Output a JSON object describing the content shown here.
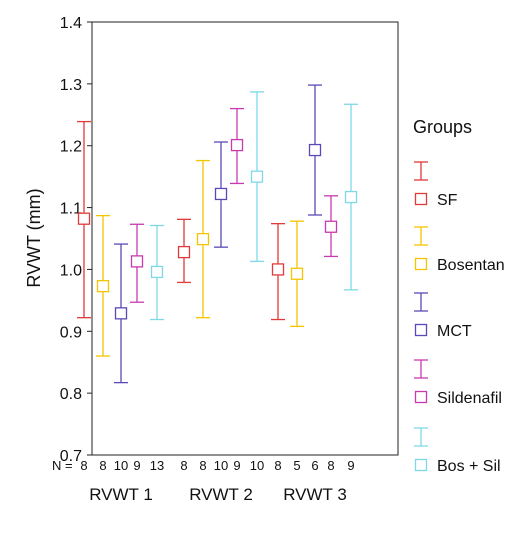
{
  "chart_data": {
    "type": "error-bar",
    "ylabel": "RVWT (mm)",
    "xlabel": "",
    "ylim": [
      0.7,
      1.4
    ],
    "yticks": [
      "0.7",
      "0.8",
      "0.9",
      "1.0",
      "1.1",
      "1.2",
      "1.3",
      "1.4"
    ],
    "n_prefix": "N =",
    "legend_title": "Groups",
    "legend_position": "right",
    "categories": [
      "RVWT 1",
      "RVWT 2",
      "RVWT 3"
    ],
    "series": [
      {
        "name": "SF",
        "color": "#e03a3a",
        "mean": [
          1.082,
          1.028,
          1.0
        ],
        "lower": [
          0.922,
          0.979,
          0.919
        ],
        "upper": [
          1.239,
          1.081,
          1.074
        ],
        "n": [
          "8",
          "8",
          "8"
        ]
      },
      {
        "name": "Bosentan",
        "color": "#f5c400",
        "mean": [
          0.973,
          1.049,
          0.993
        ],
        "lower": [
          0.86,
          0.922,
          0.908
        ],
        "upper": [
          1.087,
          1.176,
          1.078
        ],
        "n": [
          "8",
          "8",
          "5"
        ]
      },
      {
        "name": "MCT",
        "color": "#5a4ab8",
        "mean": [
          0.929,
          1.122,
          1.193
        ],
        "lower": [
          0.817,
          1.036,
          1.088
        ],
        "upper": [
          1.041,
          1.206,
          1.298
        ],
        "n": [
          "10",
          "10",
          "6"
        ]
      },
      {
        "name": "Sildenafil",
        "color": "#c83ab0",
        "mean": [
          1.013,
          1.201,
          1.069
        ],
        "lower": [
          0.947,
          1.139,
          1.021
        ],
        "upper": [
          1.073,
          1.26,
          1.119
        ],
        "n": [
          "9",
          "9",
          "8"
        ]
      },
      {
        "name": "Bos + Sil",
        "color": "#7fd8e8",
        "mean": [
          0.996,
          1.15,
          1.117
        ],
        "lower": [
          0.919,
          1.013,
          0.967
        ],
        "upper": [
          1.071,
          1.287,
          1.267
        ],
        "n": [
          "13",
          "10",
          "9"
        ]
      }
    ]
  }
}
